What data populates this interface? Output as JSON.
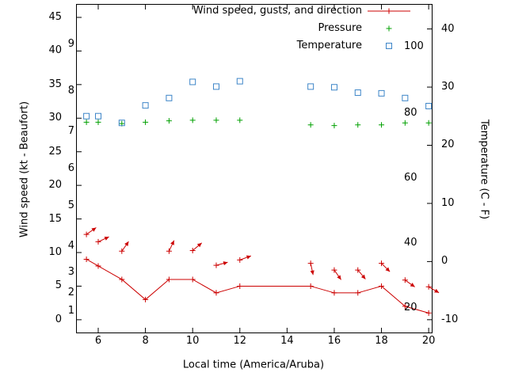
{
  "axes": {
    "x_title": "Local time (America/Aruba)",
    "left_title": "Wind speed (kt - Beaufort)",
    "right_title": "Temperature (C - F)",
    "x_ticks": [
      6,
      8,
      10,
      12,
      14,
      16,
      18,
      20
    ],
    "left_ticks": [
      0,
      5,
      10,
      15,
      20,
      25,
      30,
      35,
      40,
      45
    ],
    "right_ticks": [
      -10,
      0,
      10,
      20,
      30,
      40
    ],
    "beaufort_scale": [
      {
        "label": "1",
        "kt": 1.3
      },
      {
        "label": "2",
        "kt": 4
      },
      {
        "label": "3",
        "kt": 7
      },
      {
        "label": "4",
        "kt": 11
      },
      {
        "label": "5",
        "kt": 17
      },
      {
        "label": "6",
        "kt": 22.5
      },
      {
        "label": "7",
        "kt": 28
      },
      {
        "label": "8",
        "kt": 34
      },
      {
        "label": "9",
        "kt": 41
      }
    ],
    "inner_right_scale": [
      {
        "label": "20",
        "kt": 1.8
      },
      {
        "label": "40",
        "kt": 11.4
      },
      {
        "label": "60",
        "kt": 21.1
      },
      {
        "label": "80",
        "kt": 30.7
      },
      {
        "label": "100",
        "kt": 40.6
      }
    ]
  },
  "chart_data": {
    "type": "line",
    "title": "",
    "xlabel": "Local time (America/Aruba)",
    "ylabel_left": "Wind speed (kt - Beaufort)",
    "ylabel_right": "Temperature (C - F)",
    "grid": false,
    "legend_position": "top-right",
    "x_range": [
      5.06,
      20.13
    ],
    "y_left_range": [
      -1.9,
      47.0
    ],
    "y_right_range": [
      -12.2,
      44.3
    ],
    "x": [
      5.5,
      6,
      7,
      8,
      9,
      10,
      11,
      12,
      15,
      16,
      17,
      18,
      19,
      20
    ],
    "series": [
      {
        "name": "Wind speed, gusts, and direction",
        "key": "wind",
        "style": "line-plus",
        "color": "#cc0000",
        "values": [
          9,
          8,
          6,
          3,
          6,
          6,
          4,
          5,
          5,
          4,
          4,
          5,
          2,
          1
        ]
      },
      {
        "name": "Wind gusts and direction arrows",
        "key": "gusts",
        "style": "arrow",
        "color": "#cc0000",
        "points": [
          {
            "x": 5.5,
            "v": 12.7,
            "dir": 35
          },
          {
            "x": 6,
            "v": 11.6,
            "dir": 25
          },
          {
            "x": 7,
            "v": 10.2,
            "dir": 55
          },
          {
            "x": 9,
            "v": 10.2,
            "dir": 65
          },
          {
            "x": 10,
            "v": 10.3,
            "dir": 40
          },
          {
            "x": 11,
            "v": 8.1,
            "dir": 15
          },
          {
            "x": 12,
            "v": 8.9,
            "dir": 20
          },
          {
            "x": 15,
            "v": 8.4,
            "dir": -78
          },
          {
            "x": 16,
            "v": 7.4,
            "dir": -55
          },
          {
            "x": 17,
            "v": 7.4,
            "dir": -50
          },
          {
            "x": 18,
            "v": 8.4,
            "dir": -45
          },
          {
            "x": 19,
            "v": 5.9,
            "dir": -35
          },
          {
            "x": 20,
            "v": 4.9,
            "dir": -30
          }
        ]
      },
      {
        "name": "Pressure",
        "key": "pressure",
        "style": "plus",
        "color": "#00a000",
        "values": [
          29.4,
          29.4,
          29.2,
          29.4,
          29.6,
          29.7,
          29.7,
          29.7,
          29.0,
          28.9,
          29.0,
          29.0,
          29.3,
          29.3
        ]
      },
      {
        "name": "Temperature",
        "key": "temperature",
        "style": "square",
        "color": "#3d85c8",
        "values": [
          30.3,
          30.3,
          29.3,
          31.9,
          33.0,
          35.4,
          34.7,
          35.5,
          34.7,
          34.6,
          33.8,
          33.7,
          33.0,
          31.8
        ]
      }
    ],
    "legend_entries": [
      {
        "label": "Wind speed, gusts, and direction",
        "key": "wind",
        "sample": "line-plus"
      },
      {
        "label": "Pressure",
        "key": "pressure",
        "sample": "plus"
      },
      {
        "label": "Temperature",
        "key": "temperature",
        "sample": "square"
      }
    ]
  }
}
